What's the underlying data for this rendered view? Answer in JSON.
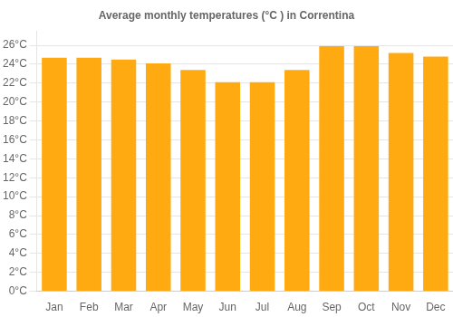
{
  "chart_data": {
    "type": "bar",
    "title": "Average monthly temperatures (°C ) in Correntina",
    "categories": [
      "Jan",
      "Feb",
      "Mar",
      "Apr",
      "May",
      "Jun",
      "Jul",
      "Aug",
      "Sep",
      "Oct",
      "Nov",
      "Dec"
    ],
    "values": [
      24.7,
      24.7,
      24.5,
      24.1,
      23.4,
      22.1,
      22.1,
      23.4,
      25.9,
      25.9,
      25.2,
      24.8
    ],
    "color": "#FFAA10",
    "ylim": [
      0,
      27.5
    ],
    "yticks": [
      {
        "value": 0,
        "label": "0°C"
      },
      {
        "value": 2,
        "label": "2°C"
      },
      {
        "value": 4,
        "label": "4°C"
      },
      {
        "value": 6,
        "label": "6°C"
      },
      {
        "value": 8,
        "label": "8°C"
      },
      {
        "value": 10,
        "label": "10°C"
      },
      {
        "value": 12,
        "label": "12°C"
      },
      {
        "value": 14,
        "label": "14°C"
      },
      {
        "value": 16,
        "label": "16°C"
      },
      {
        "value": 18,
        "label": "18°C"
      },
      {
        "value": 20,
        "label": "20°C"
      },
      {
        "value": 22,
        "label": "22°C"
      },
      {
        "value": 24,
        "label": "24°C"
      },
      {
        "value": 26,
        "label": "26°C"
      }
    ],
    "grid": true
  }
}
